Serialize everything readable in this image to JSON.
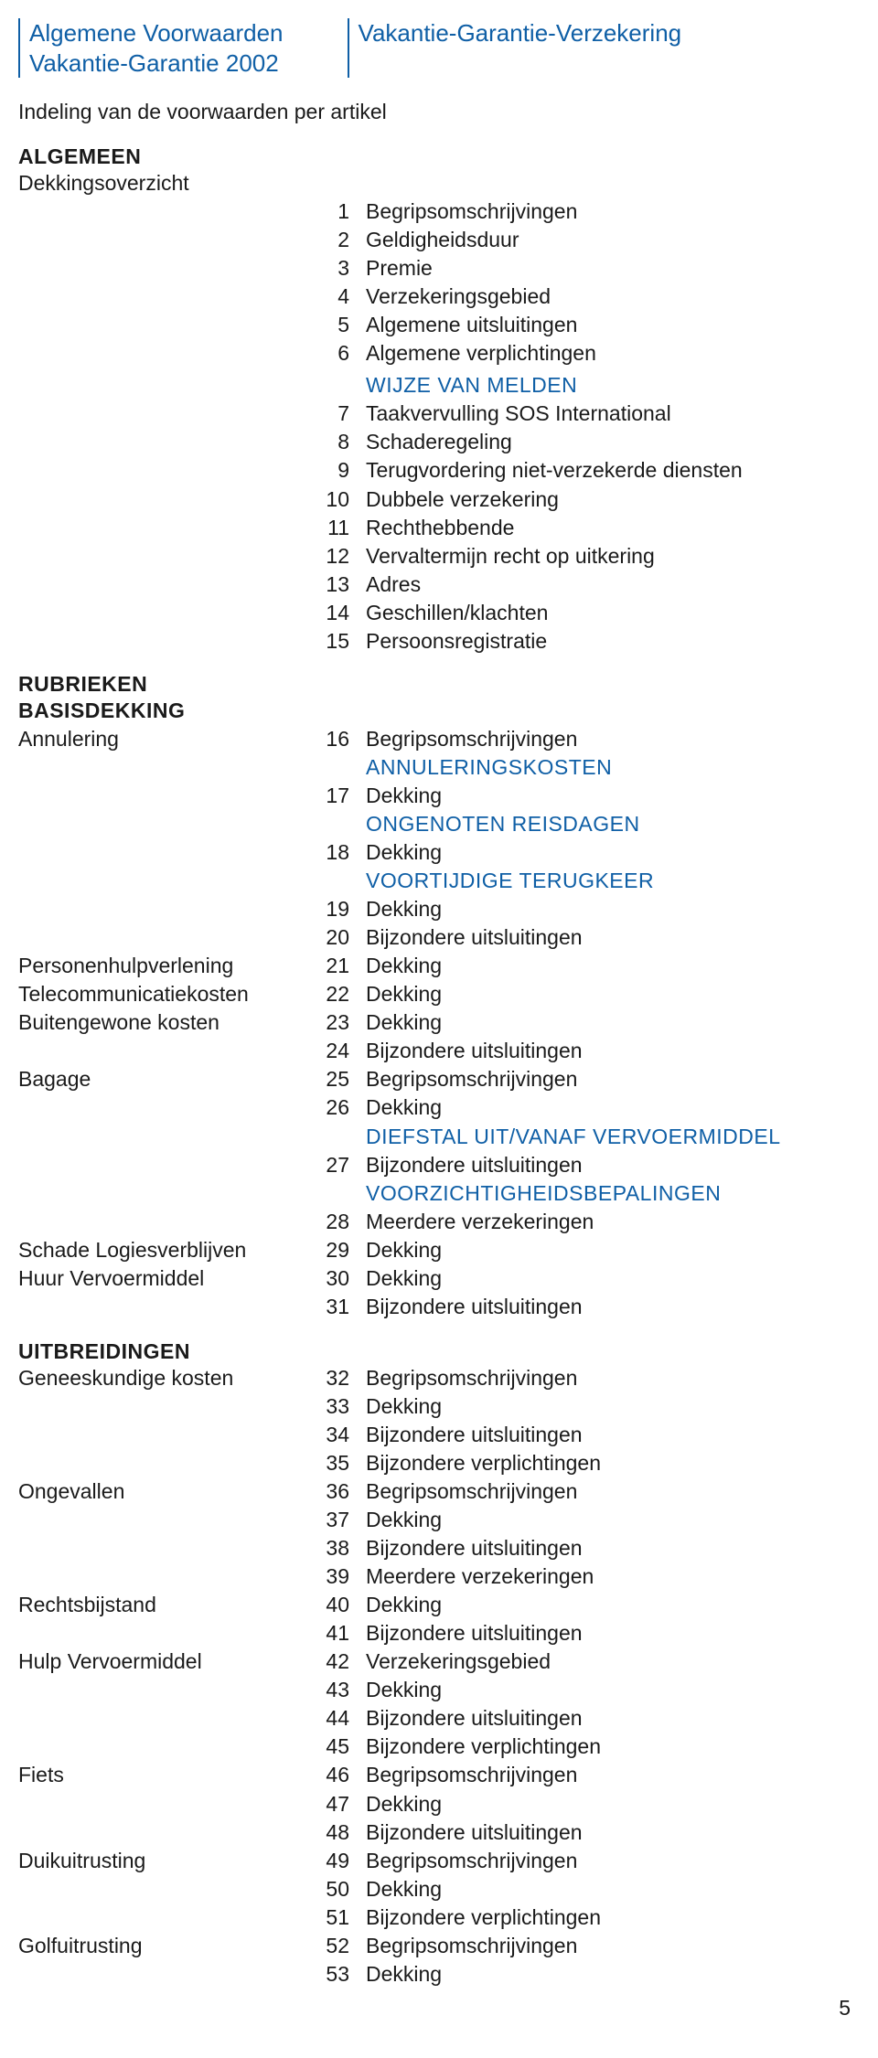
{
  "header": {
    "left_line1": "Algemene Voorwaarden",
    "left_line2": "Vakantie-Garantie 2002",
    "right_line1": "Vakantie-Garantie-Verzekering"
  },
  "subtitle": "Indeling van de voorwaarden per artikel",
  "sections": {
    "algemeen_title": "ALGEMEEN",
    "dekkingsoverzicht": "Dekkingsoverzicht",
    "wijze_title": "WIJZE VAN MELDEN",
    "rubrieken_title": "RUBRIEKEN",
    "basisdekking_title": "BASISDEKKING",
    "uitbreidingen_title": "UITBREIDINGEN"
  },
  "algemeen_rows": [
    {
      "n": "1",
      "t": "Begripsomschrijvingen"
    },
    {
      "n": "2",
      "t": "Geldigheidsduur"
    },
    {
      "n": "3",
      "t": "Premie"
    },
    {
      "n": "4",
      "t": "Verzekeringsgebied"
    },
    {
      "n": "5",
      "t": "Algemene uitsluitingen"
    },
    {
      "n": "6",
      "t": "Algemene verplichtingen"
    }
  ],
  "wijze_rows": [
    {
      "n": "7",
      "t": "Taakvervulling SOS International"
    },
    {
      "n": "8",
      "t": "Schaderegeling"
    },
    {
      "n": "9",
      "t": "Terugvordering niet-verzekerde diensten"
    },
    {
      "n": "10",
      "t": "Dubbele verzekering"
    },
    {
      "n": "11",
      "t": "Rechthebbende"
    },
    {
      "n": "12",
      "t": "Vervaltermijn recht op uitkering"
    },
    {
      "n": "13",
      "t": "Adres"
    },
    {
      "n": "14",
      "t": "Geschillen/klachten"
    },
    {
      "n": "15",
      "t": "Persoonsregistratie"
    }
  ],
  "rubriek_rows": [
    {
      "label": "Annulering",
      "n": "16",
      "t": "Begripsomschrijvingen"
    },
    {
      "label": "",
      "blue": "ANNULERINGSKOSTEN"
    },
    {
      "label": "",
      "n": "17",
      "t": "Dekking"
    },
    {
      "label": "",
      "blue": "ONGENOTEN REISDAGEN"
    },
    {
      "label": "",
      "n": "18",
      "t": "Dekking"
    },
    {
      "label": "",
      "blue": "VOORTIJDIGE TERUGKEER"
    },
    {
      "label": "",
      "n": "19",
      "t": "Dekking"
    },
    {
      "label": "",
      "n": "20",
      "t": "Bijzondere uitsluitingen"
    },
    {
      "label": "Personenhulpverlening",
      "n": "21",
      "t": "Dekking"
    },
    {
      "label": "Telecommunicatiekosten",
      "n": "22",
      "t": "Dekking"
    },
    {
      "label": "Buitengewone kosten",
      "n": "23",
      "t": "Dekking"
    },
    {
      "label": "",
      "n": "24",
      "t": "Bijzondere uitsluitingen"
    },
    {
      "label": "Bagage",
      "n": "25",
      "t": "Begripsomschrijvingen"
    },
    {
      "label": "",
      "n": "26",
      "t": "Dekking"
    },
    {
      "label": "",
      "blue": "DIEFSTAL UIT/VANAF VERVOERMIDDEL"
    },
    {
      "label": "",
      "n": "27",
      "t": "Bijzondere uitsluitingen"
    },
    {
      "label": "",
      "blue": "VOORZICHTIGHEIDSBEPALINGEN"
    },
    {
      "label": "",
      "n": "28",
      "t": "Meerdere verzekeringen"
    },
    {
      "label": "Schade Logiesverblijven",
      "n": "29",
      "t": "Dekking"
    },
    {
      "label": "Huur Vervoermiddel",
      "n": "30",
      "t": "Dekking"
    },
    {
      "label": "",
      "n": "31",
      "t": "Bijzondere uitsluitingen"
    }
  ],
  "uitbreiding_rows": [
    {
      "label": "Geneeskundige kosten",
      "n": "32",
      "t": "Begripsomschrijvingen"
    },
    {
      "label": "",
      "n": "33",
      "t": "Dekking"
    },
    {
      "label": "",
      "n": "34",
      "t": "Bijzondere uitsluitingen"
    },
    {
      "label": "",
      "n": "35",
      "t": "Bijzondere verplichtingen"
    },
    {
      "label": "Ongevallen",
      "n": "36",
      "t": "Begripsomschrijvingen"
    },
    {
      "label": "",
      "n": "37",
      "t": "Dekking"
    },
    {
      "label": "",
      "n": "38",
      "t": "Bijzondere uitsluitingen"
    },
    {
      "label": "",
      "n": "39",
      "t": "Meerdere verzekeringen"
    },
    {
      "label": "Rechtsbijstand",
      "n": "40",
      "t": "Dekking"
    },
    {
      "label": "",
      "n": "41",
      "t": "Bijzondere uitsluitingen"
    },
    {
      "label": "Hulp Vervoermiddel",
      "n": "42",
      "t": "Verzekeringsgebied"
    },
    {
      "label": "",
      "n": "43",
      "t": "Dekking"
    },
    {
      "label": "",
      "n": "44",
      "t": "Bijzondere uitsluitingen"
    },
    {
      "label": "",
      "n": "45",
      "t": "Bijzondere verplichtingen"
    },
    {
      "label": "Fiets",
      "n": "46",
      "t": "Begripsomschrijvingen"
    },
    {
      "label": "",
      "n": "47",
      "t": "Dekking"
    },
    {
      "label": "",
      "n": "48",
      "t": "Bijzondere uitsluitingen"
    },
    {
      "label": "Duikuitrusting",
      "n": "49",
      "t": "Begripsomschrijvingen"
    },
    {
      "label": "",
      "n": "50",
      "t": "Dekking"
    },
    {
      "label": "",
      "n": "51",
      "t": "Bijzondere verplichtingen"
    },
    {
      "label": "Golfuitrusting",
      "n": "52",
      "t": "Begripsomschrijvingen"
    },
    {
      "label": "",
      "n": "53",
      "t": "Dekking"
    }
  ],
  "page_number": "5"
}
